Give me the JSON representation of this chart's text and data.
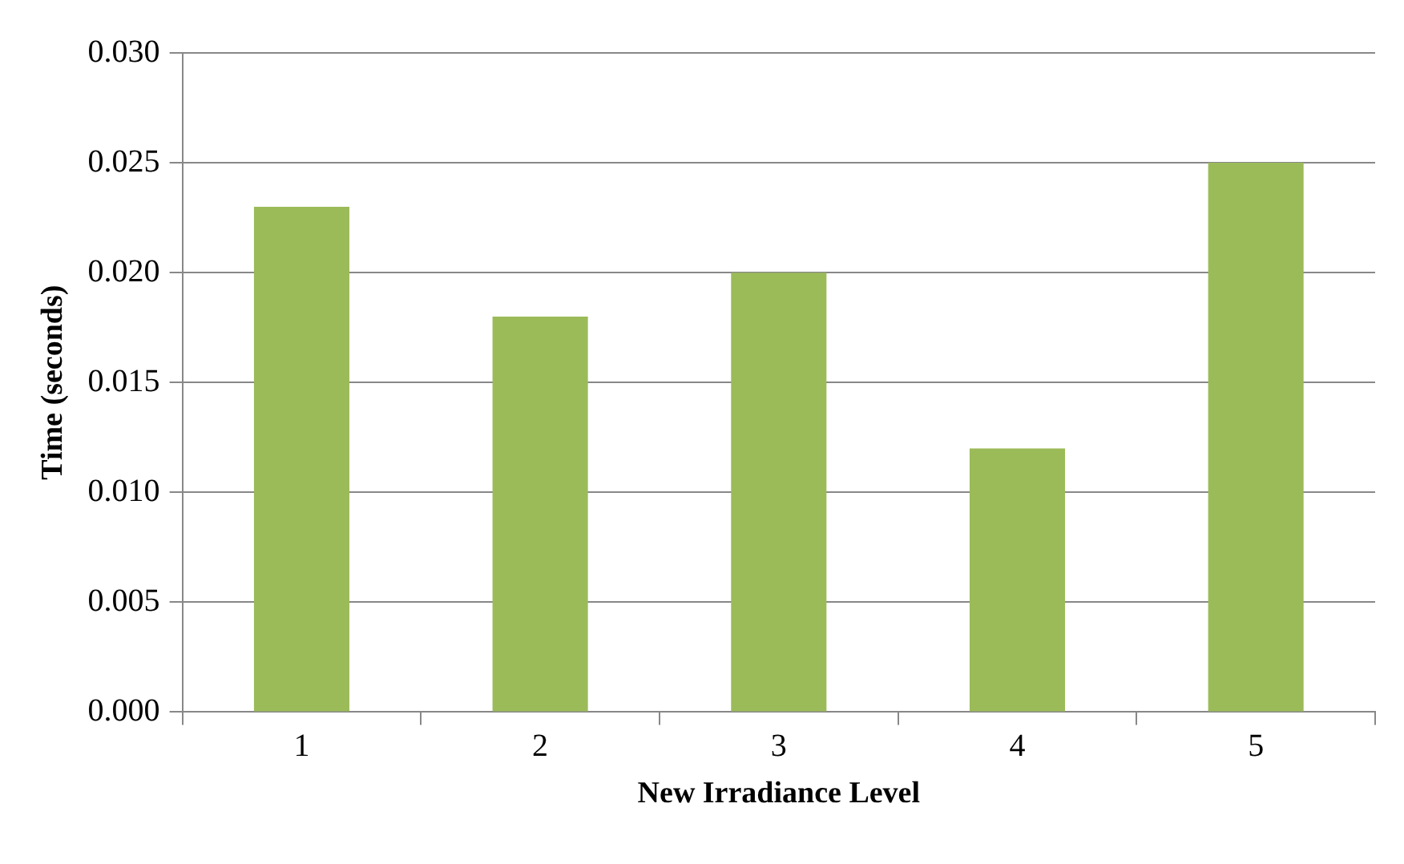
{
  "chart_data": {
    "type": "bar",
    "xlabel": "New Irradiance Level",
    "ylabel": "Time (seconds)",
    "categories": [
      "1",
      "2",
      "3",
      "4",
      "5"
    ],
    "values": [
      0.023,
      0.018,
      0.02,
      0.012,
      0.025
    ],
    "color": "#9bbb59",
    "ylim": [
      0,
      0.03
    ],
    "yticks": [
      {
        "value": 0,
        "label": "0.000"
      },
      {
        "value": 0.005,
        "label": "0.005"
      },
      {
        "value": 0.01,
        "label": "0.010"
      },
      {
        "value": 0.015,
        "label": "0.015"
      },
      {
        "value": 0.02,
        "label": "0.020"
      },
      {
        "value": 0.025,
        "label": "0.025"
      },
      {
        "value": 0.03,
        "label": "0.030"
      }
    ],
    "grid": "y",
    "legend": false
  }
}
